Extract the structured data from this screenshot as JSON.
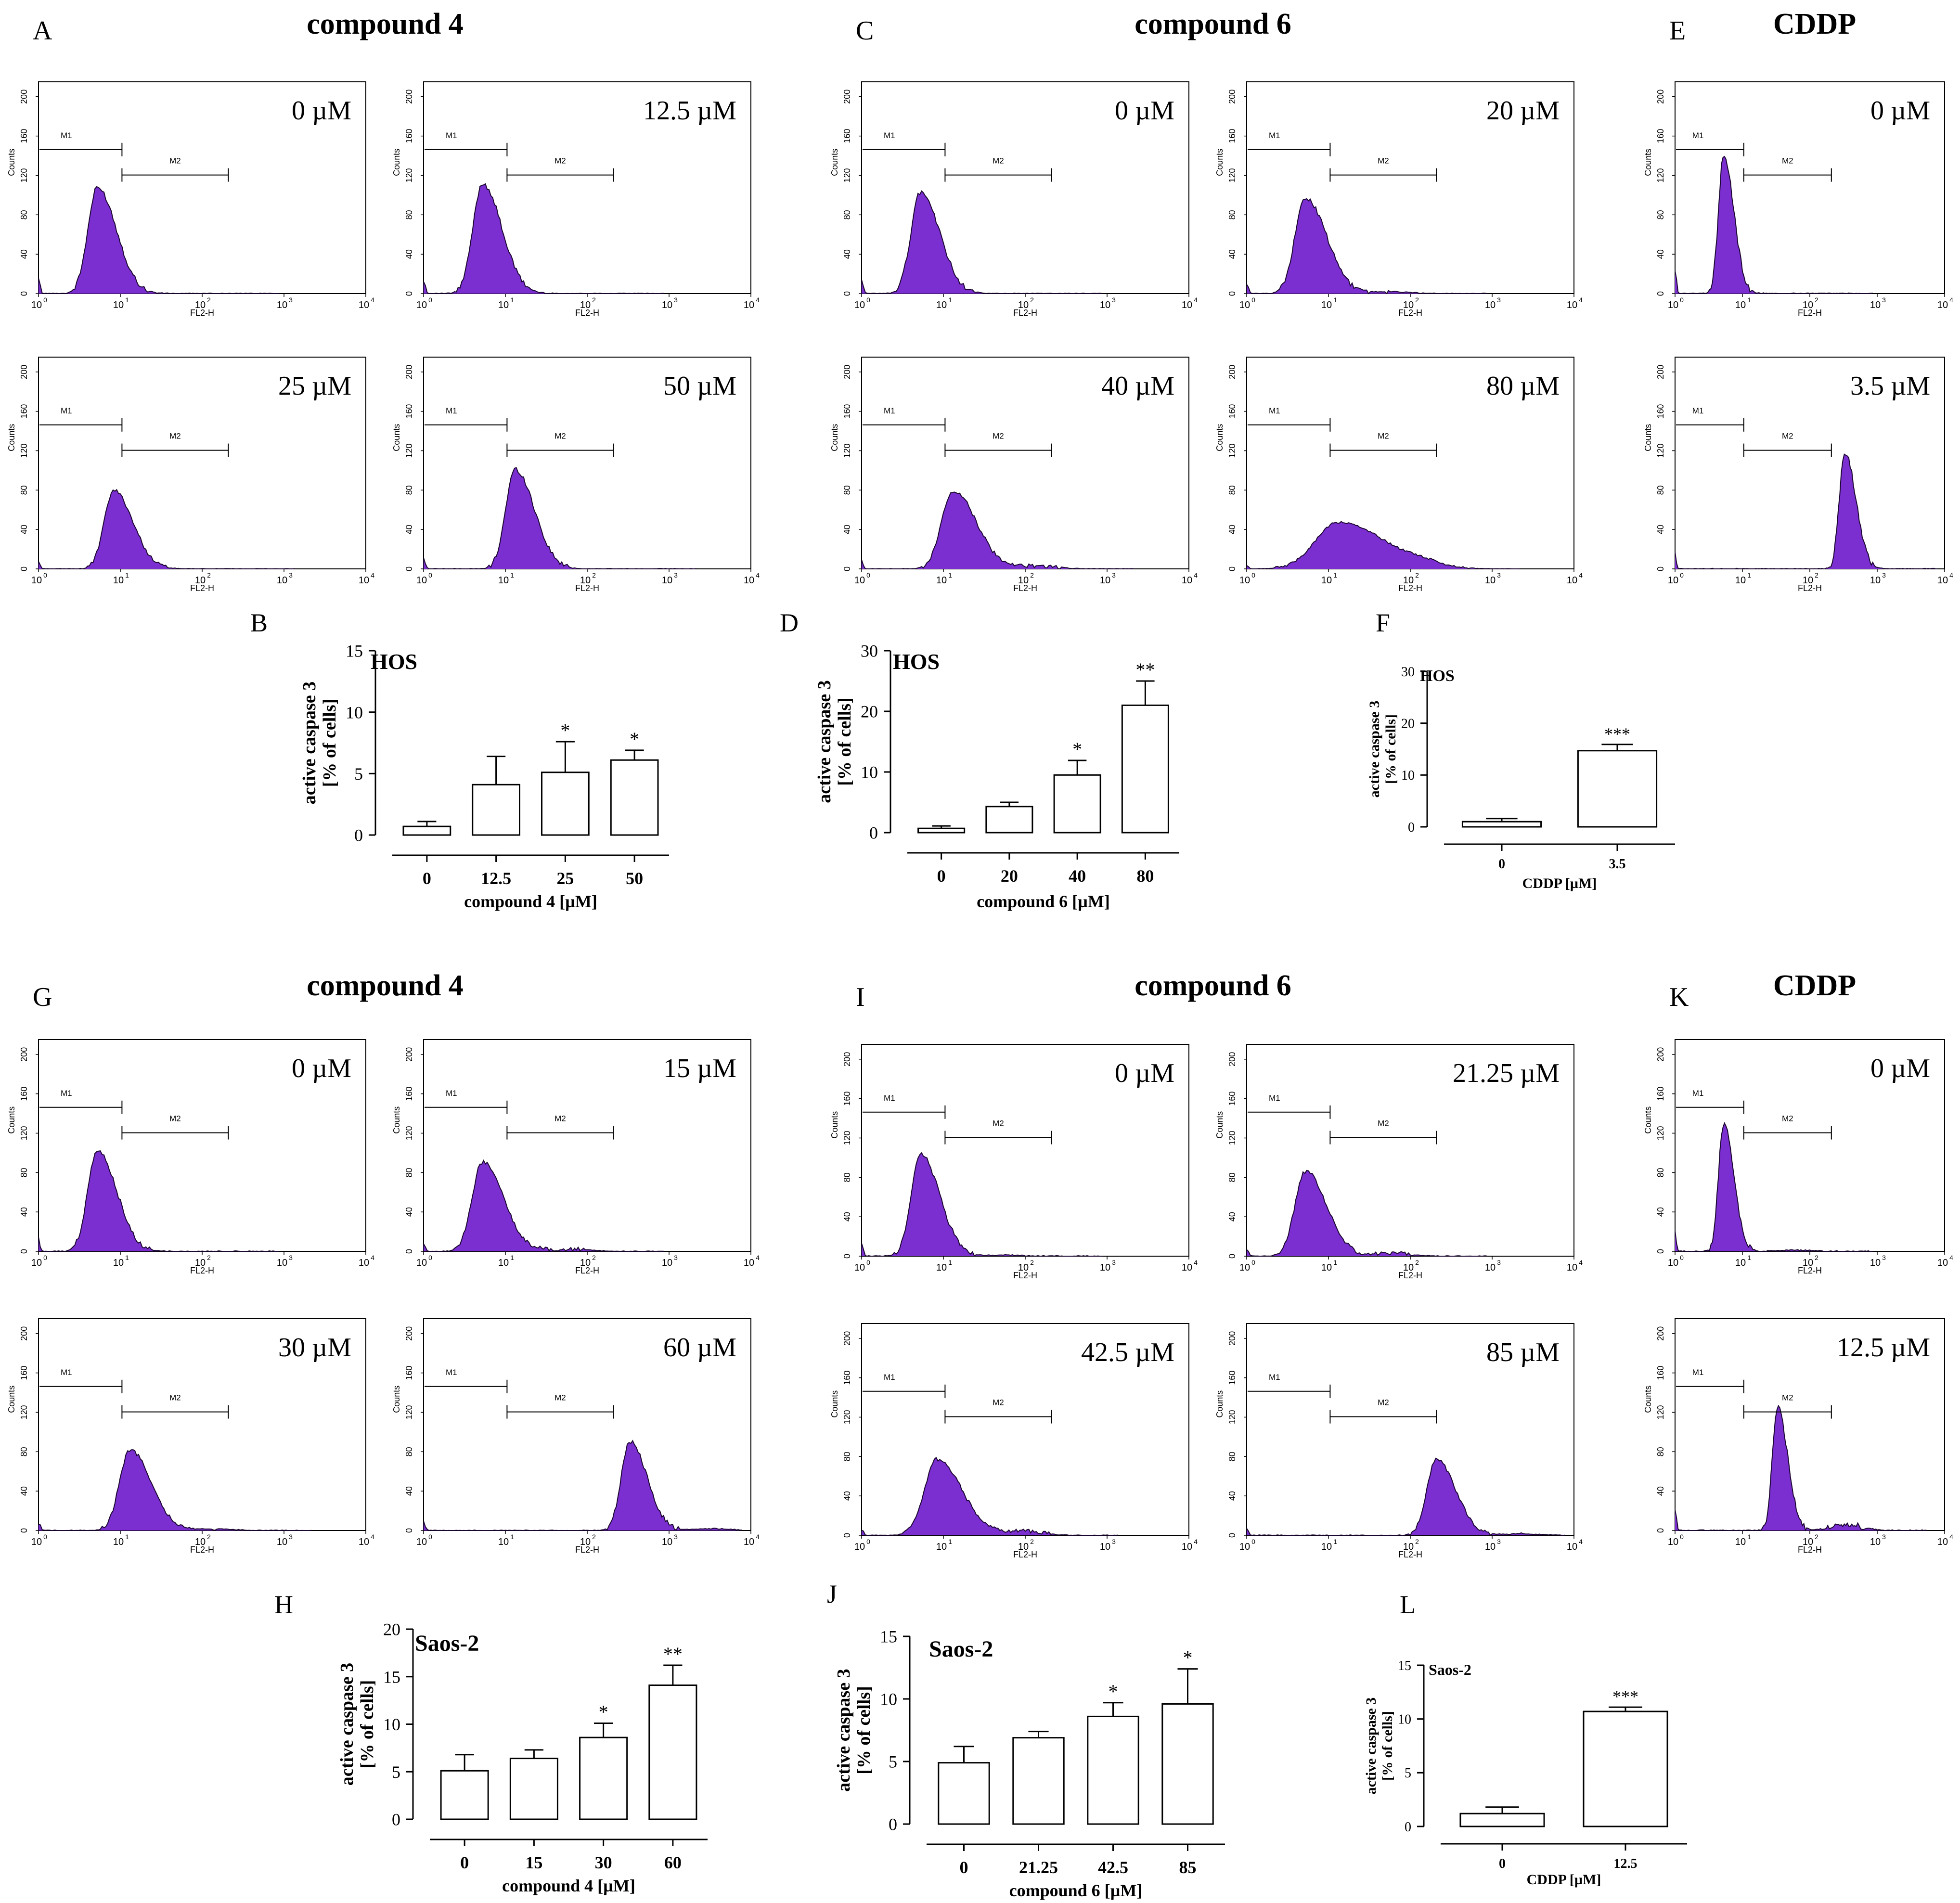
{
  "figure": {
    "rows": [
      {
        "cell_line": "HOS",
        "groups": [
          {
            "id": "A",
            "title": "compound 4",
            "plots": [
              {
                "conc": "0 µM",
                "shift": 0,
                "spread": 1,
                "hi": 0.5,
                "tail": 0
              },
              {
                "conc": "12.5 µM",
                "shift": 0,
                "spread": 1,
                "hi": 0.52,
                "tail": 0
              },
              {
                "conc": "25 µM",
                "shift": 0.05,
                "spread": 1,
                "hi": 0.37,
                "tail": 0
              },
              {
                "conc": "50 µM",
                "shift": 0.1,
                "spread": 1,
                "hi": 0.47,
                "tail": 0
              }
            ]
          },
          {
            "id": "C",
            "title": "compound 6",
            "plots": [
              {
                "conc": "0 µM",
                "shift": 0,
                "spread": 1,
                "hi": 0.48,
                "tail": 0
              },
              {
                "conc": "20 µM",
                "shift": 0,
                "spread": 1.1,
                "hi": 0.45,
                "tail": 0.02
              },
              {
                "conc": "40 µM",
                "shift": 0.1,
                "spread": 1.2,
                "hi": 0.37,
                "tail": 0.04
              },
              {
                "conc": "80 µM",
                "shift": 0.1,
                "spread": 2.4,
                "hi": 0.22,
                "tail": 0.08
              }
            ]
          },
          {
            "id": "E",
            "title": "CDDP",
            "plots": [
              {
                "conc": "0 µM",
                "shift": 0,
                "spread": 0.65,
                "hi": 0.65,
                "tail": 0
              },
              {
                "conc": "3.5 µM",
                "shift": 0.45,
                "spread": 0.7,
                "hi": 0.55,
                "tail": 0
              }
            ]
          }
        ]
      },
      {
        "cell_line": "Saos-2",
        "groups": [
          {
            "id": "G",
            "title": "compound 4",
            "plots": [
              {
                "conc": "0 µM",
                "shift": 0,
                "spread": 1,
                "hi": 0.48,
                "tail": 0
              },
              {
                "conc": "15 µM",
                "shift": 0,
                "spread": 1.1,
                "hi": 0.42,
                "tail": 0.03
              },
              {
                "conc": "30 µM",
                "shift": 0.1,
                "spread": 1.1,
                "hi": 0.38,
                "tail": 0.02
              },
              {
                "conc": "60 µM",
                "shift": 0.45,
                "spread": 0.9,
                "hi": 0.42,
                "tail": 0.02
              }
            ]
          },
          {
            "id": "I",
            "title": "compound 6",
            "plots": [
              {
                "conc": "0 µM",
                "shift": 0,
                "spread": 1,
                "hi": 0.48,
                "tail": 0.01
              },
              {
                "conc": "21.25 µM",
                "shift": 0,
                "spread": 1.1,
                "hi": 0.4,
                "tail": 0.04
              },
              {
                "conc": "42.5 µM",
                "shift": 0.05,
                "spread": 1.3,
                "hi": 0.36,
                "tail": 0.06
              },
              {
                "conc": "85 µM",
                "shift": 0.4,
                "spread": 1,
                "hi": 0.36,
                "tail": 0.02
              }
            ]
          },
          {
            "id": "K",
            "title": "CDDP",
            "plots": [
              {
                "conc": "0 µM",
                "shift": 0,
                "spread": 0.65,
                "hi": 0.6,
                "tail": 0.01
              },
              {
                "conc": "12.5 µM",
                "shift": 0.2,
                "spread": 0.65,
                "hi": 0.58,
                "tail": 0.05
              }
            ]
          }
        ]
      }
    ],
    "flow_axis": {
      "x_label": "FL2-H",
      "y_label": "Counts",
      "y_ticks": [
        "0",
        "40",
        "80",
        "120",
        "160",
        "200"
      ],
      "x_ticks": [
        "10",
        "10",
        "10",
        "10",
        "10"
      ],
      "x_exp": [
        "0",
        "1",
        "2",
        "3",
        "4"
      ],
      "gate1": "M1",
      "gate2": "M2"
    },
    "significance": {
      "one": "*",
      "two": "**",
      "three": "***"
    },
    "histogram_color": "#7B2FD0"
  },
  "chart_data": [
    {
      "panel": "B",
      "type": "bar",
      "title": "HOS",
      "categories": [
        "0",
        "12.5",
        "25",
        "50"
      ],
      "values": [
        0.7,
        4.1,
        5.1,
        6.1
      ],
      "errors": [
        0.4,
        2.3,
        2.5,
        0.8
      ],
      "stars": [
        "",
        "",
        "*",
        "*"
      ],
      "xlabel": "compound 4 [µM]",
      "ylabel1": "active caspase 3",
      "ylabel2": "[% of cells]",
      "ylim": [
        0,
        15
      ],
      "yticks": [
        0,
        5,
        10,
        15
      ]
    },
    {
      "panel": "D",
      "type": "bar",
      "title": "HOS",
      "categories": [
        "0",
        "20",
        "40",
        "80"
      ],
      "values": [
        0.7,
        4.3,
        9.5,
        21
      ],
      "errors": [
        0.4,
        0.7,
        2.4,
        4
      ],
      "stars": [
        "",
        "",
        "*",
        "**"
      ],
      "xlabel": "compound 6 [µM]",
      "ylabel1": "active caspase 3",
      "ylabel2": "[% of cells]",
      "ylim": [
        0,
        30
      ],
      "yticks": [
        0,
        10,
        20,
        30
      ]
    },
    {
      "panel": "F",
      "type": "bar",
      "title": "HOS",
      "categories": [
        "0",
        "3.5"
      ],
      "values": [
        1,
        14.7
      ],
      "errors": [
        0.6,
        1.2
      ],
      "stars": [
        "",
        "***"
      ],
      "xlabel": "CDDP [µM]",
      "ylabel1": "active caspase 3",
      "ylabel2": "[% of cells]",
      "ylim": [
        0,
        30
      ],
      "yticks": [
        0,
        10,
        20,
        30
      ]
    },
    {
      "panel": "H",
      "type": "bar",
      "title": "Saos-2",
      "categories": [
        "0",
        "15",
        "30",
        "60"
      ],
      "values": [
        5.1,
        6.4,
        8.6,
        14.1
      ],
      "errors": [
        1.7,
        0.9,
        1.5,
        2.1
      ],
      "stars": [
        "",
        "",
        "*",
        "**"
      ],
      "xlabel": "compound 4 [µM]",
      "ylabel1": "active caspase 3",
      "ylabel2": "[% of cells]",
      "ylim": [
        0,
        20
      ],
      "yticks": [
        0,
        5,
        10,
        15,
        20
      ]
    },
    {
      "panel": "J",
      "type": "bar",
      "title": "Saos-2",
      "categories": [
        "0",
        "21.25",
        "42.5",
        "85"
      ],
      "values": [
        4.9,
        6.9,
        8.6,
        9.6
      ],
      "errors": [
        1.3,
        0.5,
        1.1,
        2.8
      ],
      "stars": [
        "",
        "",
        "*",
        "*"
      ],
      "xlabel": "compound 6 [µM]",
      "ylabel1": "active caspase 3",
      "ylabel2": "[% of cells]",
      "ylim": [
        0,
        15
      ],
      "yticks": [
        0,
        5,
        10,
        15
      ]
    },
    {
      "panel": "L",
      "type": "bar",
      "title": "Saos-2",
      "categories": [
        "0",
        "12.5"
      ],
      "values": [
        1.2,
        10.7
      ],
      "errors": [
        0.6,
        0.4
      ],
      "stars": [
        "",
        "***"
      ],
      "xlabel": "CDDP [µM]",
      "ylabel1": "active caspase 3",
      "ylabel2": "[% of cells]",
      "ylim": [
        0,
        15
      ],
      "yticks": [
        0,
        5,
        10,
        15
      ]
    }
  ]
}
